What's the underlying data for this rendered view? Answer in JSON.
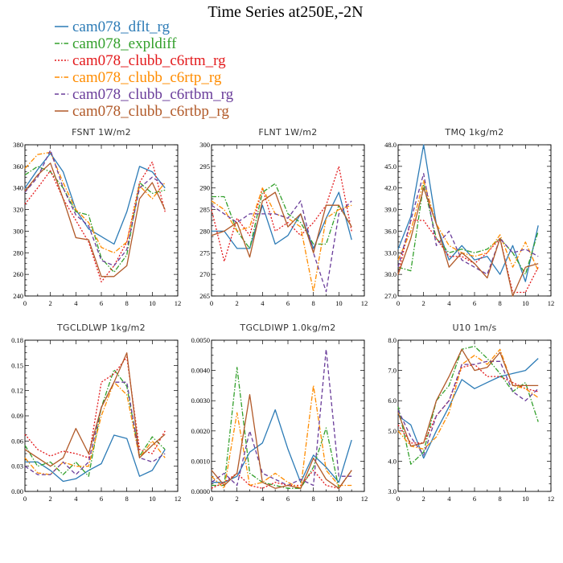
{
  "figure": {
    "title": "Time Series at250E,-2N"
  },
  "legend": [
    {
      "name": "cam078_dflt_rg",
      "color": "#2c7bb6",
      "dash": "solid"
    },
    {
      "name": "cam078_expldiff",
      "color": "#33a02c",
      "dash": "dashdot"
    },
    {
      "name": "cam078_clubb_c6rtm_rg",
      "color": "#e31a1c",
      "dash": "dot"
    },
    {
      "name": "cam078_clubb_c6rtp_rg",
      "color": "#ff8c00",
      "dash": "dashdot"
    },
    {
      "name": "cam078_clubb_c6rtbm_rg",
      "color": "#6a3d9a",
      "dash": "dash"
    },
    {
      "name": "cam078_clubb_c6rtbp_rg",
      "color": "#b15928",
      "dash": "solid"
    }
  ],
  "chart_data": [
    {
      "type": "line",
      "title": "FSNT 1W/m2",
      "xlim": [
        0,
        12
      ],
      "ylim": [
        240,
        380
      ],
      "xticks": [
        0,
        2,
        4,
        6,
        8,
        10,
        12
      ],
      "yticks": [
        "240",
        "260",
        "280",
        "300",
        "320",
        "340",
        "360",
        "380"
      ],
      "x": [
        0,
        1,
        2,
        3,
        4,
        5,
        6,
        7,
        8,
        9,
        10,
        11
      ],
      "series": [
        {
          "name": "cam078_dflt_rg",
          "values": [
            340,
            357,
            372,
            355,
            320,
            302,
            295,
            288,
            318,
            360,
            355,
            340
          ]
        },
        {
          "name": "cam078_expldiff",
          "values": [
            352,
            360,
            355,
            340,
            318,
            315,
            275,
            262,
            278,
            345,
            335,
            338
          ]
        },
        {
          "name": "cam078_clubb_c6rtm_rg",
          "values": [
            325,
            340,
            356,
            330,
            310,
            290,
            253,
            268,
            290,
            345,
            364,
            318
          ]
        },
        {
          "name": "cam078_clubb_c6rtp_rg",
          "values": [
            358,
            371,
            373,
            345,
            320,
            308,
            285,
            280,
            290,
            342,
            330,
            345
          ]
        },
        {
          "name": "cam078_clubb_c6rtbm_rg",
          "values": [
            336,
            350,
            375,
            340,
            315,
            305,
            273,
            268,
            283,
            340,
            350,
            342
          ]
        },
        {
          "name": "cam078_clubb_c6rtbp_rg",
          "values": [
            337,
            352,
            363,
            330,
            294,
            292,
            258,
            258,
            268,
            330,
            345,
            320
          ]
        }
      ]
    },
    {
      "type": "line",
      "title": "FLNT 1W/m2",
      "xlim": [
        0,
        12
      ],
      "ylim": [
        265,
        300
      ],
      "xticks": [
        0,
        2,
        4,
        6,
        8,
        10,
        12
      ],
      "yticks": [
        "265",
        "270",
        "275",
        "280",
        "285",
        "290",
        "295",
        "300"
      ],
      "x": [
        0,
        1,
        2,
        3,
        4,
        5,
        6,
        7,
        8,
        9,
        10,
        11
      ],
      "series": [
        {
          "name": "cam078_dflt_rg",
          "values": [
            280,
            280,
            276,
            276,
            286,
            277,
            279,
            284,
            276,
            283,
            289,
            278
          ]
        },
        {
          "name": "cam078_expldiff",
          "values": [
            288,
            288,
            280,
            276,
            289,
            291,
            284,
            282,
            277,
            277,
            286,
            281
          ]
        },
        {
          "name": "cam078_clubb_c6rtm_rg",
          "values": [
            285,
            273,
            283,
            279,
            290,
            280,
            282,
            279,
            282,
            286,
            295,
            280
          ]
        },
        {
          "name": "cam078_clubb_c6rtp_rg",
          "values": [
            287,
            285,
            280,
            281,
            290,
            284,
            283,
            281,
            266,
            283,
            285,
            286
          ]
        },
        {
          "name": "cam078_clubb_c6rtbm_rg",
          "values": [
            286,
            284,
            282,
            284,
            284,
            284,
            283,
            287,
            275,
            266,
            284,
            287
          ]
        },
        {
          "name": "cam078_clubb_c6rtbp_rg",
          "values": [
            279,
            280,
            282,
            274,
            287,
            289,
            281,
            284,
            275,
            286,
            286,
            281
          ]
        }
      ]
    },
    {
      "type": "line",
      "title": "TMQ 1kg/m2",
      "xlim": [
        0,
        12
      ],
      "ylim": [
        27.0,
        48.0
      ],
      "xticks": [
        0,
        2,
        4,
        6,
        8,
        10,
        12
      ],
      "yticks": [
        "27.0",
        "30.0",
        "33.0",
        "36.0",
        "39.0",
        "42.0",
        "45.0",
        "48.0"
      ],
      "x": [
        0,
        1,
        2,
        3,
        4,
        5,
        6,
        7,
        8,
        9,
        10,
        11
      ],
      "series": [
        {
          "name": "cam078_dflt_rg",
          "values": [
            33.5,
            38,
            48,
            37,
            32,
            34,
            32,
            32.5,
            30,
            34,
            29,
            36.8
          ]
        },
        {
          "name": "cam078_expldiff",
          "values": [
            31,
            30.5,
            42.5,
            35,
            33,
            33.5,
            33,
            33.5,
            35,
            33,
            30,
            36
          ]
        },
        {
          "name": "cam078_clubb_c6rtm_rg",
          "values": [
            30,
            37.5,
            37.5,
            35,
            32.5,
            32.5,
            31.5,
            33,
            35,
            27.5,
            27.5,
            31
          ]
        },
        {
          "name": "cam078_clubb_c6rtp_rg",
          "values": [
            32,
            36,
            43,
            37,
            34,
            33,
            32.5,
            33,
            35.5,
            31,
            34.5,
            30.5
          ]
        },
        {
          "name": "cam078_clubb_c6rtbm_rg",
          "values": [
            31,
            37.5,
            44,
            34,
            36,
            32,
            31,
            30,
            35,
            33,
            33.5,
            32.5
          ]
        },
        {
          "name": "cam078_clubb_c6rtbp_rg",
          "values": [
            30,
            35,
            42,
            37,
            31,
            33,
            31.5,
            29.5,
            35,
            27,
            31,
            31.5
          ]
        }
      ]
    },
    {
      "type": "line",
      "title": "TGCLDLWP 1kg/m2",
      "xlim": [
        0,
        12
      ],
      "ylim": [
        0.0,
        0.18
      ],
      "xticks": [
        0,
        2,
        4,
        6,
        8,
        10,
        12
      ],
      "yticks": [
        "0.00",
        "0.03",
        "0.06",
        "0.09",
        "0.12",
        "0.15",
        "0.18"
      ],
      "x": [
        0,
        1,
        2,
        3,
        4,
        5,
        6,
        7,
        8,
        9,
        10,
        11
      ],
      "series": [
        {
          "name": "cam078_dflt_rg",
          "values": [
            0.035,
            0.035,
            0.025,
            0.012,
            0.015,
            0.025,
            0.033,
            0.067,
            0.063,
            0.018,
            0.025,
            0.05
          ]
        },
        {
          "name": "cam078_expldiff",
          "values": [
            0.055,
            0.03,
            0.035,
            0.02,
            0.035,
            0.018,
            0.1,
            0.145,
            0.125,
            0.042,
            0.065,
            0.05
          ]
        },
        {
          "name": "cam078_clubb_c6rtm_rg",
          "values": [
            0.068,
            0.05,
            0.042,
            0.048,
            0.045,
            0.04,
            0.13,
            0.14,
            0.16,
            0.05,
            0.045,
            0.072
          ]
        },
        {
          "name": "cam078_clubb_c6rtp_rg",
          "values": [
            0.04,
            0.022,
            0.02,
            0.035,
            0.03,
            0.03,
            0.09,
            0.13,
            0.115,
            0.04,
            0.06,
            0.04
          ]
        },
        {
          "name": "cam078_clubb_c6rtbm_rg",
          "values": [
            0.03,
            0.02,
            0.02,
            0.035,
            0.02,
            0.035,
            0.1,
            0.13,
            0.13,
            0.04,
            0.035,
            0.045
          ]
        },
        {
          "name": "cam078_clubb_c6rtbp_rg",
          "values": [
            0.05,
            0.04,
            0.03,
            0.04,
            0.075,
            0.045,
            0.1,
            0.13,
            0.165,
            0.04,
            0.055,
            0.068
          ]
        }
      ]
    },
    {
      "type": "line",
      "title": "TGCLDIWP 1.0kg/m2",
      "xlim": [
        0,
        12
      ],
      "ylim": [
        0.0,
        0.005
      ],
      "xticks": [
        0,
        2,
        4,
        6,
        8,
        10,
        12
      ],
      "yticks": [
        "0.0000",
        "0.0010",
        "0.0020",
        "0.0030",
        "0.0040",
        "0.0050"
      ],
      "x": [
        0,
        1,
        2,
        3,
        4,
        5,
        6,
        7,
        8,
        9,
        10,
        11
      ],
      "series": [
        {
          "name": "cam078_dflt_rg",
          "values": [
            0.0003,
            0.0003,
            0.0005,
            0.0013,
            0.0016,
            0.0027,
            0.0014,
            0.0003,
            0.0012,
            0.0008,
            0.0003,
            0.0017
          ]
        },
        {
          "name": "cam078_expldiff",
          "values": [
            0.0002,
            0.0002,
            0.0041,
            0.0006,
            0.0003,
            0.0002,
            0.0001,
            0.0001,
            0.0008,
            0.0021,
            0.0001,
            0.0007
          ]
        },
        {
          "name": "cam078_clubb_c6rtm_rg",
          "values": [
            0.0001,
            0.0003,
            0.0006,
            0.0002,
            0.0001,
            0.0003,
            0.0002,
            0.0002,
            0.0007,
            0.0002,
            0.0001,
            0.0007
          ]
        },
        {
          "name": "cam078_clubb_c6rtp_rg",
          "values": [
            0.0005,
            0.0001,
            0.0026,
            0.0002,
            0.0003,
            0.0006,
            0.0003,
            0.0001,
            0.0035,
            0.0007,
            0.0002,
            0.0002
          ]
        },
        {
          "name": "cam078_clubb_c6rtbm_rg",
          "values": [
            0.0003,
            0.0006,
            0.0002,
            0.002,
            0.0006,
            0.0004,
            0.0002,
            0.0004,
            0.0002,
            0.0047,
            0.0005,
            0.0005
          ]
        },
        {
          "name": "cam078_clubb_c6rtbp_rg",
          "values": [
            0.0007,
            0.0002,
            0.0006,
            0.0032,
            0.0003,
            0.0001,
            0.0002,
            0.0001,
            0.0011,
            0.0004,
            0.0001,
            0.0007
          ]
        }
      ]
    },
    {
      "type": "line",
      "title": "U10 1m/s",
      "xlim": [
        0,
        12
      ],
      "ylim": [
        3.0,
        8.0
      ],
      "xticks": [
        0,
        2,
        4,
        6,
        8,
        10,
        12
      ],
      "yticks": [
        "3.0",
        "4.0",
        "5.0",
        "6.0",
        "7.0",
        "8.0"
      ],
      "x": [
        0,
        1,
        2,
        3,
        4,
        5,
        6,
        7,
        8,
        9,
        10,
        11
      ],
      "series": [
        {
          "name": "cam078_dflt_rg",
          "values": [
            5.5,
            5.2,
            4.1,
            5.0,
            5.8,
            6.7,
            6.4,
            6.6,
            6.8,
            6.9,
            7.0,
            7.4
          ]
        },
        {
          "name": "cam078_expldiff",
          "values": [
            5.8,
            3.9,
            4.3,
            6.0,
            6.5,
            7.7,
            7.8,
            7.4,
            6.9,
            6.3,
            6.6,
            5.3
          ]
        },
        {
          "name": "cam078_clubb_c6rtm_rg",
          "values": [
            5.2,
            4.6,
            4.6,
            5.5,
            6.0,
            7.1,
            7.2,
            6.8,
            6.8,
            6.6,
            6.4,
            6.3
          ]
        },
        {
          "name": "cam078_clubb_c6rtp_rg",
          "values": [
            5.0,
            4.5,
            4.4,
            4.8,
            5.6,
            7.2,
            7.5,
            7.2,
            7.7,
            6.5,
            6.4,
            6.1
          ]
        },
        {
          "name": "cam078_clubb_c6rtbm_rg",
          "values": [
            5.7,
            4.8,
            4.2,
            5.5,
            6.0,
            7.2,
            7.2,
            7.3,
            7.3,
            6.3,
            6.0,
            6.4
          ]
        },
        {
          "name": "cam078_clubb_c6rtbp_rg",
          "values": [
            5.6,
            4.5,
            4.6,
            6.0,
            6.8,
            7.7,
            7.0,
            7.1,
            7.6,
            6.5,
            6.5,
            6.5
          ]
        }
      ]
    }
  ]
}
